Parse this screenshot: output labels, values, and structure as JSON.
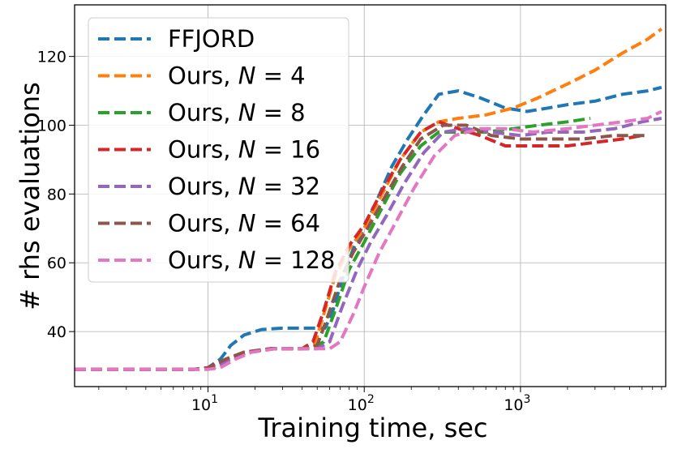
{
  "chart_data": {
    "type": "line",
    "xscale": "log",
    "xlim": [
      1.4,
      8500
    ],
    "ylim": [
      24,
      135
    ],
    "xlabel": "Training time, sec",
    "ylabel": "# rhs evaluations",
    "grid": true,
    "legend_position": "top-left",
    "x_ticks": [
      {
        "value": 10,
        "label": "10",
        "exp": "1"
      },
      {
        "value": 100,
        "label": "10",
        "exp": "2"
      },
      {
        "value": 1000,
        "label": "10",
        "exp": "3"
      }
    ],
    "y_ticks": [
      40,
      60,
      80,
      100,
      120
    ],
    "series": [
      {
        "name": "FFJORD",
        "color": "#1f77b4",
        "math": false,
        "points": [
          [
            1.4,
            29
          ],
          [
            8,
            29
          ],
          [
            10,
            29.5
          ],
          [
            12,
            32
          ],
          [
            14,
            36
          ],
          [
            17,
            39
          ],
          [
            22,
            40.6
          ],
          [
            30,
            41
          ],
          [
            50,
            41
          ],
          [
            56,
            41
          ],
          [
            62,
            45
          ],
          [
            72,
            55
          ],
          [
            85,
            64
          ],
          [
            100,
            70
          ],
          [
            120,
            78
          ],
          [
            150,
            88
          ],
          [
            190,
            96
          ],
          [
            240,
            103
          ],
          [
            300,
            109
          ],
          [
            400,
            110
          ],
          [
            550,
            108
          ],
          [
            800,
            105
          ],
          [
            1100,
            104
          ],
          [
            1500,
            105
          ],
          [
            2000,
            106
          ],
          [
            3000,
            107
          ],
          [
            4500,
            109
          ],
          [
            6500,
            110
          ],
          [
            8000,
            111
          ]
        ]
      },
      {
        "name": "Ours, ",
        "var": "N",
        "rel": " = ",
        "num": "4",
        "color": "#ff7f0e",
        "math": true,
        "points": [
          [
            1.4,
            29
          ],
          [
            8,
            29
          ],
          [
            10,
            29.3
          ],
          [
            13,
            32
          ],
          [
            17,
            34
          ],
          [
            25,
            35
          ],
          [
            40,
            35
          ],
          [
            48,
            36
          ],
          [
            55,
            45
          ],
          [
            65,
            56
          ],
          [
            80,
            64
          ],
          [
            100,
            70
          ],
          [
            130,
            80
          ],
          [
            170,
            90
          ],
          [
            230,
            98
          ],
          [
            300,
            101
          ],
          [
            400,
            102
          ],
          [
            600,
            103
          ],
          [
            900,
            105
          ],
          [
            1300,
            108
          ],
          [
            2000,
            112
          ],
          [
            3000,
            116
          ],
          [
            4500,
            121
          ],
          [
            6500,
            125
          ],
          [
            8000,
            128
          ]
        ]
      },
      {
        "name": "Ours, ",
        "var": "N",
        "rel": " = ",
        "num": "8",
        "color": "#2ca02c",
        "math": true,
        "points": [
          [
            1.4,
            29
          ],
          [
            8,
            29
          ],
          [
            10.5,
            29.3
          ],
          [
            14,
            32
          ],
          [
            18,
            34
          ],
          [
            25,
            35
          ],
          [
            45,
            35
          ],
          [
            55,
            37
          ],
          [
            65,
            46
          ],
          [
            80,
            58
          ],
          [
            100,
            66
          ],
          [
            130,
            76
          ],
          [
            170,
            86
          ],
          [
            230,
            94
          ],
          [
            300,
            98
          ],
          [
            400,
            98
          ],
          [
            600,
            98
          ],
          [
            900,
            99
          ],
          [
            1300,
            100
          ],
          [
            2000,
            101
          ],
          [
            2800,
            102
          ]
        ]
      },
      {
        "name": "Ours, ",
        "var": "N",
        "rel": " = ",
        "num": "16",
        "color": "#d62728",
        "math": true,
        "points": [
          [
            1.4,
            29
          ],
          [
            8,
            29
          ],
          [
            10,
            29.5
          ],
          [
            13,
            32
          ],
          [
            17,
            34
          ],
          [
            25,
            35
          ],
          [
            40,
            35
          ],
          [
            47,
            37
          ],
          [
            55,
            46
          ],
          [
            65,
            57
          ],
          [
            80,
            65
          ],
          [
            100,
            71
          ],
          [
            130,
            81
          ],
          [
            170,
            90
          ],
          [
            230,
            98
          ],
          [
            300,
            101
          ],
          [
            400,
            99
          ],
          [
            550,
            97
          ],
          [
            800,
            94
          ],
          [
            1200,
            94
          ],
          [
            2000,
            94
          ],
          [
            3000,
            95
          ],
          [
            4500,
            96
          ],
          [
            6000,
            97
          ]
        ]
      },
      {
        "name": "Ours, ",
        "var": "N",
        "rel": " = ",
        "num": "32",
        "color": "#9467bd",
        "math": true,
        "points": [
          [
            1.4,
            29
          ],
          [
            9,
            29
          ],
          [
            11,
            29.5
          ],
          [
            14,
            32
          ],
          [
            18,
            34
          ],
          [
            25,
            35
          ],
          [
            50,
            35
          ],
          [
            60,
            37
          ],
          [
            72,
            47
          ],
          [
            90,
            58
          ],
          [
            110,
            66
          ],
          [
            140,
            74
          ],
          [
            180,
            83
          ],
          [
            240,
            92
          ],
          [
            320,
            98
          ],
          [
            450,
            99
          ],
          [
            650,
            98
          ],
          [
            1000,
            97
          ],
          [
            1500,
            98
          ],
          [
            2500,
            98
          ],
          [
            4000,
            99
          ],
          [
            6000,
            101
          ],
          [
            8000,
            102
          ]
        ]
      },
      {
        "name": "Ours, ",
        "var": "N",
        "rel": " = ",
        "num": "64",
        "color": "#8c564b",
        "math": true,
        "points": [
          [
            1.4,
            29
          ],
          [
            8,
            29
          ],
          [
            10,
            29.3
          ],
          [
            13,
            32
          ],
          [
            17,
            34
          ],
          [
            25,
            35
          ],
          [
            40,
            35
          ],
          [
            50,
            36
          ],
          [
            58,
            44
          ],
          [
            70,
            55
          ],
          [
            85,
            63
          ],
          [
            105,
            70
          ],
          [
            135,
            79
          ],
          [
            175,
            88
          ],
          [
            230,
            96
          ],
          [
            320,
            100
          ],
          [
            450,
            100
          ],
          [
            650,
            97
          ],
          [
            1000,
            96
          ],
          [
            1500,
            96
          ],
          [
            2500,
            96
          ],
          [
            4000,
            97
          ],
          [
            6500,
            97
          ]
        ]
      },
      {
        "name": "Ours, ",
        "var": "N",
        "rel": " = ",
        "num": "128",
        "color": "#e377c2",
        "math": true,
        "points": [
          [
            1.4,
            29
          ],
          [
            10,
            29
          ],
          [
            12,
            29.5
          ],
          [
            15,
            32
          ],
          [
            19,
            34
          ],
          [
            27,
            35
          ],
          [
            60,
            35
          ],
          [
            70,
            37
          ],
          [
            85,
            45
          ],
          [
            100,
            53
          ],
          [
            125,
            63
          ],
          [
            160,
            72
          ],
          [
            210,
            82
          ],
          [
            280,
            91
          ],
          [
            380,
            97
          ],
          [
            550,
            99
          ],
          [
            800,
            99
          ],
          [
            1200,
            98
          ],
          [
            2000,
            99
          ],
          [
            3000,
            100
          ],
          [
            4500,
            101
          ],
          [
            6500,
            102
          ],
          [
            8000,
            104
          ]
        ]
      }
    ]
  }
}
